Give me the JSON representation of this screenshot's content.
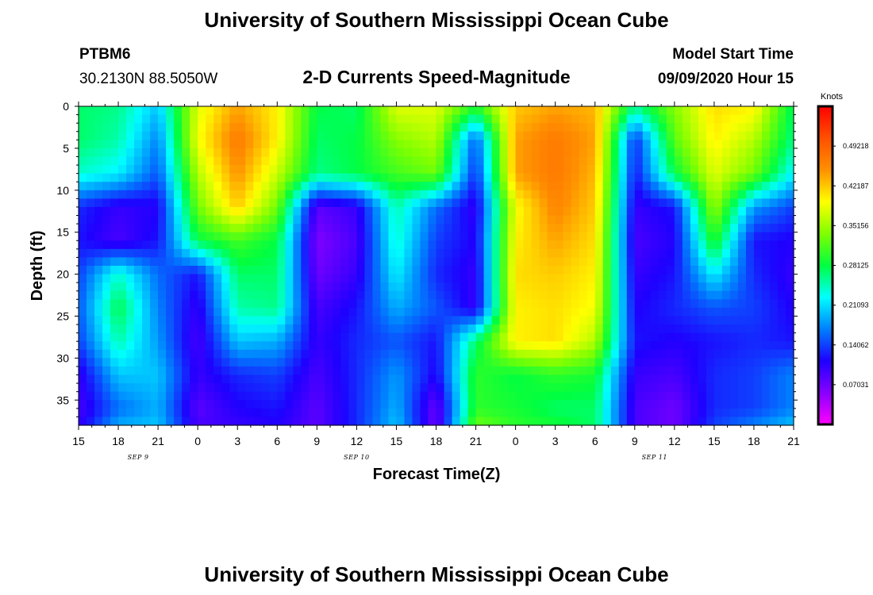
{
  "title": "University of Southern Mississippi Ocean Cube",
  "footer_title": "University of Southern Mississippi Ocean Cube",
  "station": {
    "id": "PTBM6",
    "location": "30.2130N 88.5050W"
  },
  "subtitle": "2-D Currents Speed-Magnitude",
  "model_start": {
    "label": "Model Start Time",
    "value": "09/09/2020 Hour 15"
  },
  "chart_data": {
    "type": "heatmap",
    "xlabel": "Forecast Time(Z)",
    "ylabel": "Depth (ft)",
    "x_range": [
      0,
      54
    ],
    "y_range": [
      0,
      38
    ],
    "y_ticks": [
      0,
      5,
      10,
      15,
      20,
      25,
      30,
      35
    ],
    "x_ticks": [
      {
        "hour": 0,
        "label": "15"
      },
      {
        "hour": 3,
        "label": "18"
      },
      {
        "hour": 6,
        "label": "21"
      },
      {
        "hour": 9,
        "label": "0"
      },
      {
        "hour": 12,
        "label": "3"
      },
      {
        "hour": 15,
        "label": "6"
      },
      {
        "hour": 18,
        "label": "9"
      },
      {
        "hour": 21,
        "label": "12"
      },
      {
        "hour": 24,
        "label": "15"
      },
      {
        "hour": 27,
        "label": "18"
      },
      {
        "hour": 30,
        "label": "21"
      },
      {
        "hour": 33,
        "label": "0"
      },
      {
        "hour": 36,
        "label": "3"
      },
      {
        "hour": 39,
        "label": "6"
      },
      {
        "hour": 42,
        "label": "9"
      },
      {
        "hour": 45,
        "label": "12"
      },
      {
        "hour": 48,
        "label": "15"
      },
      {
        "hour": 51,
        "label": "18"
      },
      {
        "hour": 54,
        "label": "21"
      }
    ],
    "date_labels": [
      {
        "hour": 4.5,
        "label": "SEP 9"
      },
      {
        "hour": 21,
        "label": "SEP 10"
      },
      {
        "hour": 43.5,
        "label": "SEP 11"
      }
    ],
    "colorbar": {
      "unit": "Knots",
      "min": 0.0,
      "max": 0.5625,
      "ticks": [
        "0.07031",
        "0.14062",
        "0.21093",
        "0.28125",
        "0.35156",
        "0.42187",
        "0.49218"
      ],
      "tick_values": [
        0.07031,
        0.14062,
        0.21093,
        0.28125,
        0.35156,
        0.42187,
        0.49218
      ],
      "colors": [
        "#ff00ff",
        "#8800ff",
        "#1e00ff",
        "#0080ff",
        "#00ffff",
        "#00ff40",
        "#80ff00",
        "#ffff00",
        "#ff9000",
        "#ff5000",
        "#ff0000"
      ]
    },
    "depths": [
      0,
      4,
      8,
      12,
      16,
      20,
      24,
      28,
      32,
      36,
      38
    ],
    "hours": [
      0,
      3,
      6,
      9,
      12,
      15,
      18,
      21,
      24,
      27,
      30,
      33,
      36,
      39,
      42,
      45,
      48,
      51,
      54
    ],
    "speed": [
      [
        0.27,
        0.26,
        0.2,
        0.38,
        0.44,
        0.4,
        0.28,
        0.27,
        0.38,
        0.38,
        0.3,
        0.42,
        0.44,
        0.43,
        0.26,
        0.34,
        0.41,
        0.4,
        0.27
      ],
      [
        0.27,
        0.25,
        0.17,
        0.39,
        0.47,
        0.4,
        0.27,
        0.28,
        0.34,
        0.36,
        0.15,
        0.44,
        0.47,
        0.44,
        0.13,
        0.32,
        0.4,
        0.36,
        0.26
      ],
      [
        0.24,
        0.22,
        0.15,
        0.36,
        0.45,
        0.37,
        0.26,
        0.28,
        0.31,
        0.33,
        0.13,
        0.44,
        0.47,
        0.43,
        0.12,
        0.28,
        0.38,
        0.33,
        0.22
      ],
      [
        0.13,
        0.1,
        0.11,
        0.33,
        0.42,
        0.33,
        0.08,
        0.1,
        0.25,
        0.16,
        0.1,
        0.39,
        0.46,
        0.42,
        0.1,
        0.12,
        0.35,
        0.18,
        0.14
      ],
      [
        0.12,
        0.09,
        0.12,
        0.28,
        0.31,
        0.28,
        0.06,
        0.09,
        0.24,
        0.14,
        0.11,
        0.4,
        0.44,
        0.41,
        0.09,
        0.11,
        0.3,
        0.12,
        0.11
      ],
      [
        0.14,
        0.24,
        0.16,
        0.12,
        0.27,
        0.27,
        0.07,
        0.1,
        0.22,
        0.13,
        0.1,
        0.41,
        0.42,
        0.4,
        0.1,
        0.12,
        0.22,
        0.13,
        0.1
      ],
      [
        0.15,
        0.28,
        0.17,
        0.1,
        0.25,
        0.26,
        0.09,
        0.12,
        0.19,
        0.15,
        0.1,
        0.4,
        0.41,
        0.39,
        0.11,
        0.13,
        0.15,
        0.14,
        0.11
      ],
      [
        0.14,
        0.25,
        0.18,
        0.09,
        0.2,
        0.19,
        0.1,
        0.13,
        0.15,
        0.12,
        0.27,
        0.4,
        0.41,
        0.36,
        0.12,
        0.11,
        0.12,
        0.13,
        0.12
      ],
      [
        0.1,
        0.2,
        0.2,
        0.1,
        0.13,
        0.14,
        0.09,
        0.13,
        0.18,
        0.11,
        0.3,
        0.28,
        0.3,
        0.29,
        0.1,
        0.09,
        0.13,
        0.14,
        0.17
      ],
      [
        0.09,
        0.16,
        0.19,
        0.08,
        0.11,
        0.12,
        0.08,
        0.13,
        0.19,
        0.07,
        0.3,
        0.29,
        0.27,
        0.27,
        0.09,
        0.07,
        0.13,
        0.14,
        0.17
      ],
      [
        0.1,
        0.19,
        0.2,
        0.09,
        0.1,
        0.11,
        0.08,
        0.13,
        0.2,
        0.07,
        0.33,
        0.3,
        0.29,
        0.27,
        0.09,
        0.07,
        0.14,
        0.17,
        0.2
      ]
    ]
  }
}
